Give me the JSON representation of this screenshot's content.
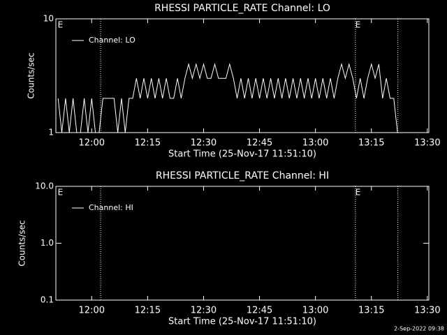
{
  "chart_data": [
    {
      "type": "line",
      "title": "RHESSI PARTICLE_RATE Channel: LO",
      "xlabel": "Start Time (25-Nov-17 11:51:10)",
      "ylabel": "Counts/sec",
      "ylog": true,
      "ylim": [
        1,
        10
      ],
      "yticks": [
        1,
        10
      ],
      "xlim": [
        710.4,
        810.4
      ],
      "xticks": [
        {
          "value": 720,
          "label": "12:00"
        },
        {
          "value": 735,
          "label": "12:15"
        },
        {
          "value": 750,
          "label": "12:30"
        },
        {
          "value": 765,
          "label": "12:45"
        },
        {
          "value": 780,
          "label": "13:00"
        },
        {
          "value": 795,
          "label": "13:15"
        },
        {
          "value": 810,
          "label": "13:30"
        }
      ],
      "vlines": [
        722.4,
        790.7,
        802.1
      ],
      "annotations": [
        {
          "text": "E",
          "x": 710.9
        },
        {
          "text": "E",
          "x": 790.7
        }
      ],
      "series": [
        {
          "name": "Channel: LO",
          "color": "#ffffff",
          "x": [
            711,
            712,
            713,
            714,
            715,
            716,
            717,
            718,
            719,
            720,
            721,
            722,
            723,
            724,
            725,
            726,
            727,
            728,
            729,
            730,
            731,
            732,
            733,
            734,
            735,
            736,
            737,
            738,
            739,
            740,
            741,
            742,
            743,
            744,
            745,
            746,
            747,
            748,
            749,
            750,
            751,
            752,
            753,
            754,
            755,
            756,
            757,
            758,
            759,
            760,
            761,
            762,
            763,
            764,
            765,
            766,
            767,
            768,
            769,
            770,
            771,
            772,
            773,
            774,
            775,
            776,
            777,
            778,
            779,
            780,
            781,
            782,
            783,
            784,
            785,
            786,
            787,
            788,
            789,
            790,
            791,
            792,
            793,
            794,
            795,
            796,
            797,
            798,
            799,
            800,
            801,
            802
          ],
          "values": [
            2,
            1,
            2,
            1,
            2,
            1,
            1,
            2,
            1,
            2,
            1,
            1,
            2,
            2,
            2,
            2,
            1,
            2,
            1,
            2,
            2,
            3,
            2,
            3,
            2,
            3,
            2,
            3,
            2,
            3,
            2,
            2,
            3,
            2,
            3,
            4,
            3,
            4,
            3,
            4,
            3,
            3,
            4,
            3,
            3,
            3,
            4,
            3,
            2,
            3,
            2,
            3,
            2,
            3,
            2,
            3,
            2,
            3,
            2,
            3,
            2,
            3,
            2,
            3,
            2,
            3,
            2,
            3,
            2,
            3,
            2,
            3,
            2,
            3,
            2,
            3,
            4,
            3,
            4,
            3,
            2,
            3,
            2,
            3,
            4,
            3,
            4,
            2,
            3,
            2,
            2,
            1
          ]
        }
      ]
    },
    {
      "type": "line",
      "title": "RHESSI PARTICLE_RATE Channel: HI",
      "xlabel": "Start Time (25-Nov-17 11:51:10)",
      "ylabel": "Counts/sec",
      "ylog": true,
      "ylim": [
        0.1,
        10
      ],
      "yticks": [
        0.1,
        {
          "value": 1,
          "label": "1.0"
        },
        {
          "value": 10,
          "label": "10.0"
        }
      ],
      "xlim": [
        710.4,
        810.4
      ],
      "xticks": [
        {
          "value": 720,
          "label": "12:00"
        },
        {
          "value": 735,
          "label": "12:15"
        },
        {
          "value": 750,
          "label": "12:30"
        },
        {
          "value": 765,
          "label": "12:45"
        },
        {
          "value": 780,
          "label": "13:00"
        },
        {
          "value": 795,
          "label": "13:15"
        },
        {
          "value": 810,
          "label": "13:30"
        }
      ],
      "vlines": [
        722.4,
        790.7,
        802.1
      ],
      "annotations": [
        {
          "text": "E",
          "x": 710.9
        },
        {
          "text": "E",
          "x": 790.7
        }
      ],
      "series": [
        {
          "name": "Channel: HI",
          "color": "#ffffff",
          "x": [],
          "values": []
        }
      ]
    }
  ],
  "footer": "2-Sep-2022 09:38"
}
